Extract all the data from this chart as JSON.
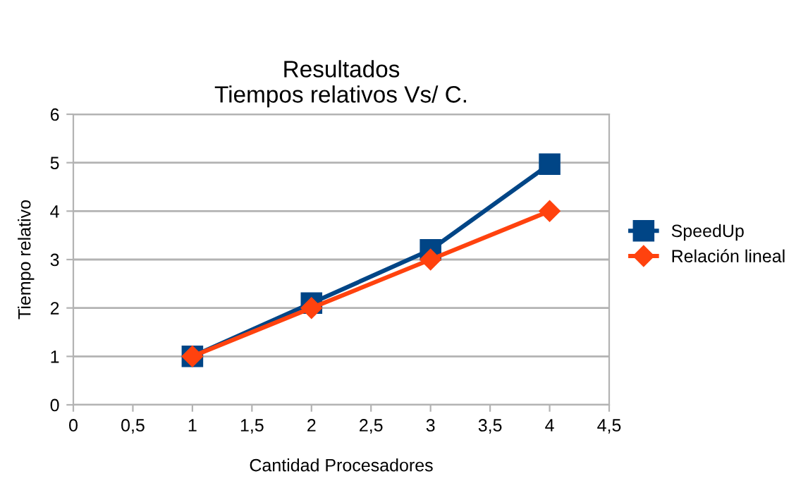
{
  "chart_data": {
    "type": "line",
    "title": "Resultados\nTiempos relativos Vs/ C.",
    "xlabel": "Cantidad Procesadores",
    "ylabel": "Tiempo relativo",
    "series": [
      {
        "name": "SpeedUp",
        "color": "#004586",
        "marker": "square",
        "x": [
          1,
          2,
          3,
          4
        ],
        "values": [
          1,
          2.1,
          3.2,
          4.97
        ]
      },
      {
        "name": "Relación lineal",
        "color": "#ff420e",
        "marker": "diamond",
        "x": [
          1,
          2,
          3,
          4
        ],
        "values": [
          1,
          2,
          3,
          4
        ]
      }
    ],
    "xlim": [
      0,
      4.5
    ],
    "xticks": [
      0,
      {
        "value": 0.5,
        "label": "0,5"
      },
      1,
      {
        "value": 1.5,
        "label": "1,5"
      },
      2,
      {
        "value": 2.5,
        "label": "2,5"
      },
      3,
      {
        "value": 3.5,
        "label": "3,5"
      },
      4,
      {
        "value": 4.5,
        "label": "4,5"
      }
    ],
    "ylim": [
      0,
      6
    ],
    "yticks": [
      0,
      1,
      2,
      3,
      4,
      5,
      6
    ],
    "grid": "y",
    "legend": "right",
    "line_style": "solid"
  }
}
